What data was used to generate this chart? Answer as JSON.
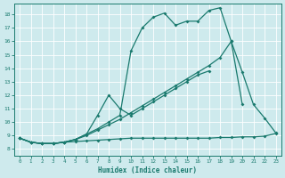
{
  "xlabel": "Humidex (Indice chaleur)",
  "bg_color": "#ceeaed",
  "grid_color": "#ffffff",
  "line_color": "#1a7a6e",
  "xlim": [
    -0.5,
    23.5
  ],
  "ylim": [
    7.5,
    18.8
  ],
  "xticks": [
    0,
    1,
    2,
    3,
    4,
    5,
    6,
    7,
    8,
    9,
    10,
    11,
    12,
    13,
    14,
    15,
    16,
    17,
    18,
    19,
    20,
    21,
    22,
    23
  ],
  "yticks": [
    8,
    9,
    10,
    11,
    12,
    13,
    14,
    15,
    16,
    17,
    18
  ],
  "line1_x": [
    0,
    1,
    2,
    3,
    4,
    5,
    6,
    7,
    8,
    9,
    10,
    11,
    12,
    13,
    14,
    15,
    16,
    17,
    18,
    19,
    20,
    21,
    22,
    23
  ],
  "line1_y": [
    8.8,
    8.5,
    8.4,
    8.4,
    8.5,
    8.55,
    8.6,
    8.65,
    8.7,
    8.75,
    8.8,
    8.8,
    8.8,
    8.8,
    8.8,
    8.8,
    8.8,
    8.8,
    8.85,
    8.85,
    8.9,
    8.9,
    8.95,
    9.15
  ],
  "line2_x": [
    0,
    1,
    2,
    3,
    4,
    5,
    6,
    7,
    8,
    9,
    10,
    11,
    12,
    13,
    14,
    15,
    16,
    17,
    18,
    19,
    20
  ],
  "line2_y": [
    8.8,
    8.5,
    8.4,
    8.4,
    8.5,
    8.7,
    9.0,
    9.4,
    9.8,
    10.2,
    10.7,
    11.2,
    11.7,
    12.2,
    12.7,
    13.2,
    13.7,
    14.2,
    14.8,
    16.0,
    11.3
  ],
  "line3_x": [
    0,
    1,
    2,
    3,
    4,
    5,
    6,
    7,
    8,
    9,
    10,
    11,
    12,
    13,
    14,
    15,
    16,
    17
  ],
  "line3_y": [
    8.8,
    8.5,
    8.4,
    8.4,
    8.5,
    8.7,
    9.1,
    10.5,
    12.0,
    11.0,
    10.5,
    11.0,
    11.5,
    12.0,
    12.5,
    13.0,
    13.5,
    13.8
  ],
  "line4_x": [
    0,
    1,
    2,
    3,
    4,
    5,
    6,
    7,
    8,
    9,
    10,
    11,
    12,
    13,
    14,
    15,
    16,
    17,
    18,
    19,
    20,
    21,
    22,
    23
  ],
  "line4_y": [
    8.8,
    8.5,
    8.4,
    8.4,
    8.5,
    8.7,
    9.1,
    9.5,
    10.0,
    10.5,
    15.3,
    17.0,
    17.8,
    18.1,
    17.2,
    17.5,
    17.5,
    18.3,
    18.5,
    16.0,
    13.7,
    11.3,
    10.3,
    9.2
  ]
}
